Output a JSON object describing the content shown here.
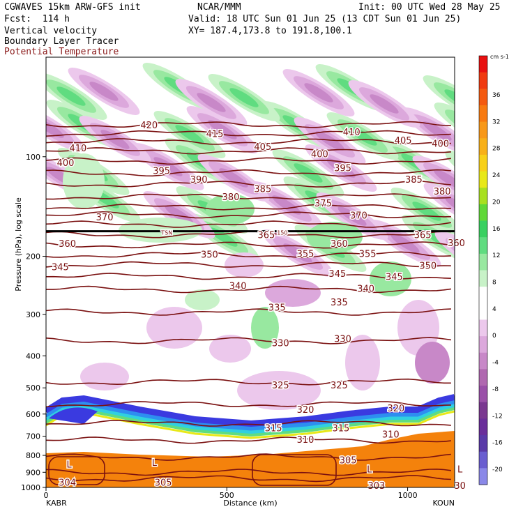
{
  "header": {
    "line1_left": "CGWAVES 15km ARW-GFS init",
    "line2_left": "Fcst:  114 h",
    "center_top": "NCAR/MMM",
    "init": "Init: 00 UTC Wed 28 May 25",
    "valid": "Valid: 18 UTC Sun 01 Jun 25 (13 CDT Sun 01 Jun 25)",
    "xy": "XY= 187.4,173.8 to 191.8,100.1",
    "field1": "Vertical velocity",
    "field2": "Boundary Layer Tracer",
    "field3": "Potential Temperature"
  },
  "colors": {
    "theta": "#7a1010",
    "tropopause": "#000000",
    "maroon_text": "#8b1a1a"
  },
  "chart_data": {
    "type": "heatmap",
    "title": "",
    "xlabel": "Distance (km)",
    "ylabel": "Pressure (hPa), log scale",
    "x_ticks": [
      "0",
      "500",
      "1000"
    ],
    "x_end_labels": {
      "left": "KABR",
      "right": "KOUN"
    },
    "xlim": [
      0,
      1130
    ],
    "y_ticks": [
      "100",
      "200",
      "300",
      "400",
      "500",
      "600",
      "700",
      "800",
      "900",
      "1000"
    ],
    "ylim_hpa": [
      1000,
      50
    ],
    "colorbar": {
      "unit": "cm s-1",
      "tick_labels": [
        "36",
        "32",
        "28",
        "24",
        "20",
        "16",
        "12",
        "8",
        "4",
        "0",
        "-4",
        "-8",
        "-12",
        "-16",
        "-20"
      ],
      "colors": [
        "#e81010",
        "#f03a10",
        "#f45a10",
        "#f87a10",
        "#f89818",
        "#f8b018",
        "#f8d018",
        "#e8e818",
        "#a8e020",
        "#60d838",
        "#38d060",
        "#60dc80",
        "#98e8a0",
        "#c8f2c8",
        "#ffffff",
        "#ffffff",
        "#ecc8ec",
        "#dca8dc",
        "#c888c8",
        "#b068b0",
        "#9a50a8",
        "#7a3890",
        "#6a2e9a",
        "#5a3aa8",
        "#6a5ed0",
        "#8a88e8"
      ]
    },
    "theta_contours": [
      {
        "label": "420",
        "p": 80
      },
      {
        "label": "415",
        "p": 85
      },
      {
        "label": "410",
        "p": 90
      },
      {
        "label": "405",
        "p": 96
      },
      {
        "label": "400",
        "p": 103
      },
      {
        "label": "395",
        "p": 112
      },
      {
        "label": "390",
        "p": 121
      },
      {
        "label": "385",
        "p": 132
      },
      {
        "label": "380",
        "p": 142
      },
      {
        "label": "375",
        "p": 150
      },
      {
        "label": "370",
        "p": 160
      },
      {
        "label": "365",
        "p": 172
      },
      {
        "label": "360",
        "p": 185
      },
      {
        "label": "355",
        "p": 198
      },
      {
        "label": "350",
        "p": 212
      },
      {
        "label": "345",
        "p": 230
      },
      {
        "label": "340",
        "p": 252
      },
      {
        "label": "335",
        "p": 295
      },
      {
        "label": "330",
        "p": 360
      },
      {
        "label": "325",
        "p": 480
      },
      {
        "label": "320",
        "p": 560
      },
      {
        "label": "315",
        "p": 640
      },
      {
        "label": "310",
        "p": 720
      },
      {
        "label": "305",
        "p": 810
      },
      {
        "label": "304",
        "p": 900
      },
      {
        "label": "303",
        "p": 940
      }
    ],
    "contour_text_labels": [
      {
        "text": "420",
        "x": 580,
        "p": 80
      },
      {
        "text": "415",
        "x": 950,
        "p": 85
      },
      {
        "text": "410",
        "x": 180,
        "p": 94
      },
      {
        "text": "410",
        "x": 1720,
        "p": 84
      },
      {
        "text": "405",
        "x": 1220,
        "p": 93
      },
      {
        "text": "405",
        "x": 2010,
        "p": 89
      },
      {
        "text": "400",
        "x": 110,
        "p": 104
      },
      {
        "text": "400",
        "x": 1540,
        "p": 98
      },
      {
        "text": "400",
        "x": 2220,
        "p": 91
      },
      {
        "text": "395",
        "x": 650,
        "p": 110
      },
      {
        "text": "395",
        "x": 1670,
        "p": 108
      },
      {
        "text": "390",
        "x": 860,
        "p": 117
      },
      {
        "text": "385",
        "x": 1220,
        "p": 125
      },
      {
        "text": "385",
        "x": 2070,
        "p": 117
      },
      {
        "text": "380",
        "x": 1040,
        "p": 132
      },
      {
        "text": "380",
        "x": 2230,
        "p": 127
      },
      {
        "text": "375",
        "x": 1560,
        "p": 138
      },
      {
        "text": "370",
        "x": 330,
        "p": 152
      },
      {
        "text": "370",
        "x": 1760,
        "p": 150
      },
      {
        "text": "365",
        "x": 1240,
        "p": 172
      },
      {
        "text": "365",
        "x": 2120,
        "p": 172
      },
      {
        "text": "360",
        "x": 120,
        "p": 183
      },
      {
        "text": "360",
        "x": 1650,
        "p": 183
      },
      {
        "text": "360",
        "x": 2310,
        "p": 182
      },
      {
        "text": "355",
        "x": 1460,
        "p": 196
      },
      {
        "text": "355",
        "x": 1810,
        "p": 196
      },
      {
        "text": "350",
        "x": 920,
        "p": 197
      },
      {
        "text": "350",
        "x": 2150,
        "p": 213
      },
      {
        "text": "345",
        "x": 80,
        "p": 215
      },
      {
        "text": "345",
        "x": 1640,
        "p": 225
      },
      {
        "text": "345",
        "x": 1960,
        "p": 230
      },
      {
        "text": "340",
        "x": 1080,
        "p": 245
      },
      {
        "text": "340",
        "x": 1800,
        "p": 250
      },
      {
        "text": "335",
        "x": 1300,
        "p": 285
      },
      {
        "text": "335",
        "x": 1650,
        "p": 275
      },
      {
        "text": "330",
        "x": 1320,
        "p": 365
      },
      {
        "text": "330",
        "x": 1670,
        "p": 355
      },
      {
        "text": "325",
        "x": 1320,
        "p": 490
      },
      {
        "text": "325",
        "x": 1650,
        "p": 490
      },
      {
        "text": "320",
        "x": 1460,
        "p": 580
      },
      {
        "text": "320",
        "x": 1970,
        "p": 575
      },
      {
        "text": "315",
        "x": 1280,
        "p": 660
      },
      {
        "text": "315",
        "x": 1660,
        "p": 660
      },
      {
        "text": "310",
        "x": 1460,
        "p": 715
      },
      {
        "text": "310",
        "x": 1940,
        "p": 690
      },
      {
        "text": "305",
        "x": 1700,
        "p": 825
      },
      {
        "text": "304",
        "x": 120,
        "p": 965
      },
      {
        "text": "305",
        "x": 660,
        "p": 965
      },
      {
        "text": "303",
        "x": 1860,
        "p": 985
      },
      {
        "text": "30",
        "x": 2330,
        "p": 985
      },
      {
        "text": "L",
        "x": 130,
        "p": 850
      },
      {
        "text": "L",
        "x": 610,
        "p": 840
      },
      {
        "text": "L",
        "x": 1820,
        "p": 880
      },
      {
        "text": "L",
        "x": 2330,
        "p": 880
      },
      {
        "text": "TSN",
        "x": 680,
        "p": 168
      },
      {
        "text": "150",
        "x": 1330,
        "p": 168
      }
    ],
    "tropopause_p": 168
  }
}
